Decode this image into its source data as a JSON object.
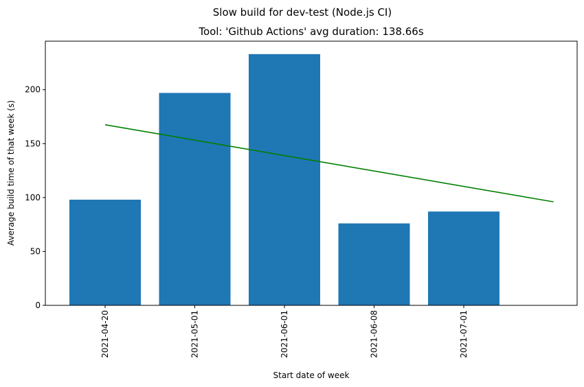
{
  "chart_data": {
    "type": "bar",
    "suptitle": "Slow build for dev-test (Node.js CI)",
    "title": "Tool: 'Github Actions' avg duration: 138.66s",
    "xlabel": "Start date of week",
    "ylabel": "Average build time of that week (s)",
    "categories": [
      "2021-04-20",
      "2021-05-01",
      "2021-06-01",
      "2021-06-08",
      "2021-07-01"
    ],
    "values": [
      98,
      197,
      233,
      76,
      87
    ],
    "bar_color": "#1f77b4",
    "trend": {
      "color": "#008000",
      "start": 167.5,
      "end": 96
    },
    "ylim": [
      0,
      245
    ],
    "yticks": [
      0,
      50,
      100,
      150,
      200
    ],
    "grid": false
  }
}
